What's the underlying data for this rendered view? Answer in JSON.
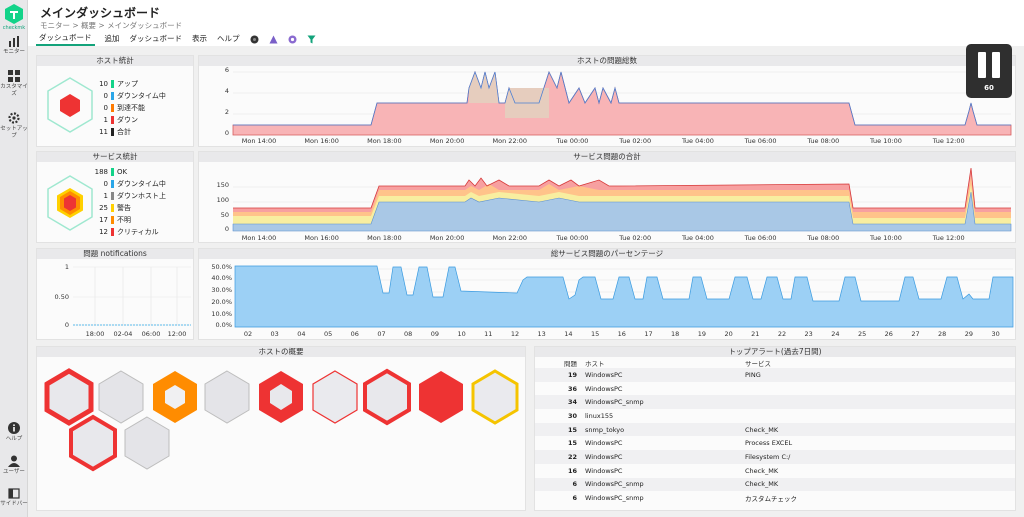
{
  "sidebar": {
    "logo_text": "checkmk",
    "items": [
      {
        "label": "モニター"
      },
      {
        "label": "カスタマイズ"
      },
      {
        "label": "セットアップ"
      },
      {
        "label": "ヘルプ"
      },
      {
        "label": "ユーザー"
      },
      {
        "label": "サイドバー"
      }
    ]
  },
  "header": {
    "title": "メインダッシュボード",
    "breadcrumb": "モニター > 概要 > メインダッシュボード"
  },
  "menu": [
    "ダッシュボード",
    "追加",
    "ダッシュボード",
    "表示",
    "ヘルプ"
  ],
  "host_stats": {
    "title": "ホスト統計",
    "rows": [
      {
        "count": "10",
        "label": "アップ",
        "color": "#13d389"
      },
      {
        "count": "0",
        "label": "ダウンタイム中",
        "color": "#2aa6e8"
      },
      {
        "count": "0",
        "label": "到達不能",
        "color": "#ff7a00"
      },
      {
        "count": "1",
        "label": "ダウン",
        "color": "#ee3333"
      },
      {
        "count": "11",
        "label": "合計",
        "color": "#222222"
      }
    ]
  },
  "service_stats": {
    "title": "サービス統計",
    "rows": [
      {
        "count": "188",
        "label": "OK",
        "color": "#13d389"
      },
      {
        "count": "0",
        "label": "ダウンタイム中",
        "color": "#2aa6e8"
      },
      {
        "count": "1",
        "label": "ダウンホスト上",
        "color": "#888888"
      },
      {
        "count": "25",
        "label": "警告",
        "color": "#ffd000"
      },
      {
        "count": "17",
        "label": "不明",
        "color": "#ff8c00"
      },
      {
        "count": "12",
        "label": "クリティカル",
        "color": "#ee3333"
      }
    ]
  },
  "host_problems": {
    "title": "ホストの問題総数",
    "yticks": [
      "6",
      "4",
      "2",
      "0"
    ],
    "xticks": [
      "Mon 14:00",
      "Mon 16:00",
      "Mon 18:00",
      "Mon 20:00",
      "Mon 22:00",
      "Tue 00:00",
      "Tue 02:00",
      "Tue 04:00",
      "Tue 06:00",
      "Tue 08:00",
      "Tue 10:00",
      "Tue 12:00"
    ]
  },
  "service_problems": {
    "title": "サービス問題の合計",
    "yticks": [
      "150",
      "100",
      "50",
      "0"
    ],
    "xticks": [
      "Mon 14:00",
      "Mon 16:00",
      "Mon 18:00",
      "Mon 20:00",
      "Mon 22:00",
      "Tue 00:00",
      "Tue 02:00",
      "Tue 04:00",
      "Tue 06:00",
      "Tue 08:00",
      "Tue 10:00",
      "Tue 12:00"
    ]
  },
  "notifications": {
    "title": "問題 notifications",
    "yticks": [
      "1",
      "0.50",
      "0"
    ],
    "xticks": [
      "18:00",
      "02-04",
      "06:00",
      "12:00"
    ]
  },
  "percentage": {
    "title": "総サービス問題のパーセンテージ",
    "yticks": [
      "50.0%",
      "40.0%",
      "30.0%",
      "20.0%",
      "10.0%",
      "0.0%"
    ],
    "xticks": [
      "02",
      "03",
      "04",
      "05",
      "06",
      "07",
      "08",
      "09",
      "10",
      "11",
      "12",
      "13",
      "14",
      "15",
      "16",
      "17",
      "18",
      "19",
      "20",
      "21",
      "22",
      "23",
      "24",
      "25",
      "26",
      "27",
      "28",
      "29",
      "30"
    ]
  },
  "host_overview": {
    "title": "ホストの概要"
  },
  "top_alerts": {
    "title": "トップアラート(過去7日間)",
    "headers": [
      "問題",
      "ホスト",
      "サービス"
    ],
    "rows": [
      {
        "count": "19",
        "host": "WindowsPC",
        "service": "PING"
      },
      {
        "count": "36",
        "host": "WindowsPC",
        "service": ""
      },
      {
        "count": "34",
        "host": "WindowsPC_snmp",
        "service": ""
      },
      {
        "count": "30",
        "host": "linux155",
        "service": ""
      },
      {
        "count": "15",
        "host": "snmp_tokyo",
        "service": "Check_MK"
      },
      {
        "count": "15",
        "host": "WindowsPC",
        "service": "Process EXCEL"
      },
      {
        "count": "22",
        "host": "WindowsPC",
        "service": "Filesystem C:/"
      },
      {
        "count": "16",
        "host": "WindowsPC",
        "service": "Check_MK"
      },
      {
        "count": "6",
        "host": "WindowsPC_snmp",
        "service": "Check_MK"
      },
      {
        "count": "6",
        "host": "WindowsPC_snmp",
        "service": "カスタムチェック"
      }
    ]
  },
  "pause_overlay": {
    "seconds": "60"
  }
}
